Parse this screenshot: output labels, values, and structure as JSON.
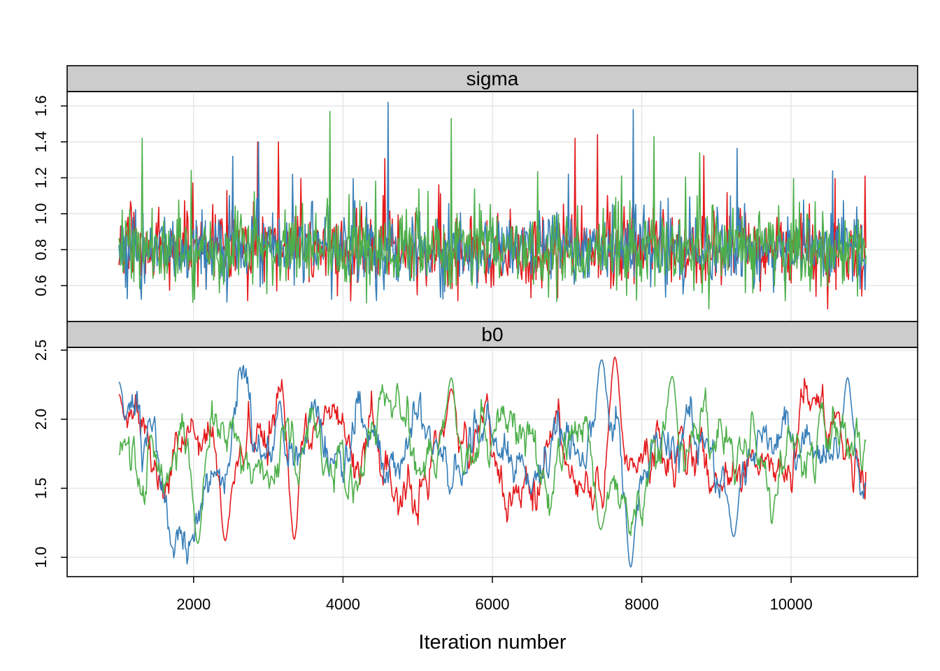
{
  "chart_data": {
    "type": "line",
    "xlabel": "Iteration number",
    "x_range": [
      1000,
      11000
    ],
    "x_ticks": [
      2000,
      4000,
      6000,
      8000,
      10000
    ],
    "grid": true,
    "legend": "none",
    "series_colors": [
      "#E41A1C",
      "#377EB8",
      "#4DAF4A"
    ],
    "panels": [
      {
        "name": "sigma",
        "ylim": [
          0.4,
          1.68
        ],
        "y_ticks": [
          0.6,
          0.8,
          1.0,
          1.2,
          1.4,
          1.6
        ],
        "y_tick_labels": [
          "0.6",
          "0.8",
          "1.0",
          "1.2",
          "1.4",
          "1.6"
        ],
        "style": "white-noise",
        "center": 0.8,
        "spread": 0.1,
        "min": 0.47,
        "peaks": [
          {
            "series": 0,
            "x": 2860,
            "y": 1.4
          },
          {
            "series": 0,
            "x": 3140,
            "y": 1.4
          },
          {
            "series": 0,
            "x": 7110,
            "y": 1.42
          },
          {
            "series": 0,
            "x": 7410,
            "y": 1.44
          },
          {
            "series": 0,
            "x": 10990,
            "y": 1.21
          },
          {
            "series": 1,
            "x": 2520,
            "y": 1.32
          },
          {
            "series": 1,
            "x": 2870,
            "y": 1.4
          },
          {
            "series": 1,
            "x": 4600,
            "y": 1.62
          },
          {
            "series": 1,
            "x": 7880,
            "y": 1.58
          },
          {
            "series": 2,
            "x": 1310,
            "y": 1.42
          },
          {
            "series": 2,
            "x": 3820,
            "y": 1.57
          },
          {
            "series": 2,
            "x": 5450,
            "y": 1.53
          },
          {
            "series": 2,
            "x": 8160,
            "y": 1.43
          }
        ]
      },
      {
        "name": "b0",
        "ylim": [
          0.86,
          2.52
        ],
        "y_ticks": [
          1.0,
          1.5,
          2.0,
          2.5
        ],
        "y_tick_labels": [
          "1.0",
          "1.5",
          "2.0",
          "2.5"
        ],
        "style": "autocorrelated",
        "center": 1.75,
        "spread": 0.2,
        "peaks": [
          {
            "series": 0,
            "x": 1000,
            "y": 2.18
          },
          {
            "series": 0,
            "x": 5450,
            "y": 2.22
          },
          {
            "series": 0,
            "x": 7640,
            "y": 2.45
          },
          {
            "series": 0,
            "x": 2420,
            "y": 1.12
          },
          {
            "series": 0,
            "x": 3350,
            "y": 1.13
          },
          {
            "series": 1,
            "x": 1000,
            "y": 2.27
          },
          {
            "series": 1,
            "x": 7460,
            "y": 2.43
          },
          {
            "series": 1,
            "x": 7850,
            "y": 0.93
          },
          {
            "series": 1,
            "x": 10750,
            "y": 2.3
          },
          {
            "series": 1,
            "x": 9230,
            "y": 1.15
          },
          {
            "series": 2,
            "x": 5450,
            "y": 2.3
          },
          {
            "series": 2,
            "x": 8410,
            "y": 2.31
          },
          {
            "series": 2,
            "x": 2060,
            "y": 1.1
          },
          {
            "series": 2,
            "x": 7450,
            "y": 1.2
          }
        ]
      }
    ]
  }
}
